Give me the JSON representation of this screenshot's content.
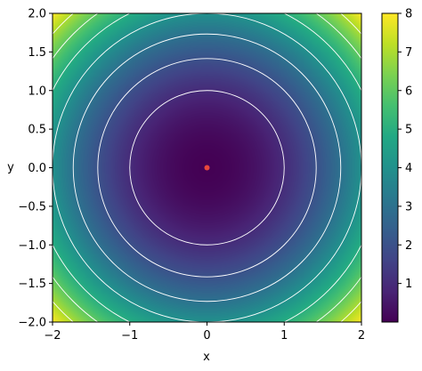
{
  "chart_data": {
    "type": "heatmap",
    "function": "x^2 + y^2",
    "xlabel": "x",
    "ylabel": "y",
    "xlim": [
      -2,
      2
    ],
    "ylim": [
      -2,
      2
    ],
    "x_ticks": [
      -2,
      -1,
      0,
      1,
      2
    ],
    "x_tick_labels": [
      "−2",
      "−1",
      "0",
      "1",
      "2"
    ],
    "y_ticks": [
      -2.0,
      -1.5,
      -1.0,
      -0.5,
      0.0,
      0.5,
      1.0,
      1.5,
      2.0
    ],
    "y_tick_labels": [
      "−2.0",
      "−1.5",
      "−1.0",
      "−0.5",
      "0.0",
      "0.5",
      "1.0",
      "1.5",
      "2.0"
    ],
    "colorbar": {
      "colormap": "viridis",
      "range": [
        0,
        8
      ],
      "ticks": [
        1,
        2,
        3,
        4,
        5,
        6,
        7,
        8
      ],
      "tick_labels": [
        "1",
        "2",
        "3",
        "4",
        "5",
        "6",
        "7",
        "8"
      ]
    },
    "contour_levels": [
      1,
      2,
      3,
      4,
      5,
      6,
      7
    ],
    "contour_color": "#ffffff",
    "marker": {
      "x": 0,
      "y": 0,
      "color": "#e8473c"
    },
    "grid": false
  }
}
